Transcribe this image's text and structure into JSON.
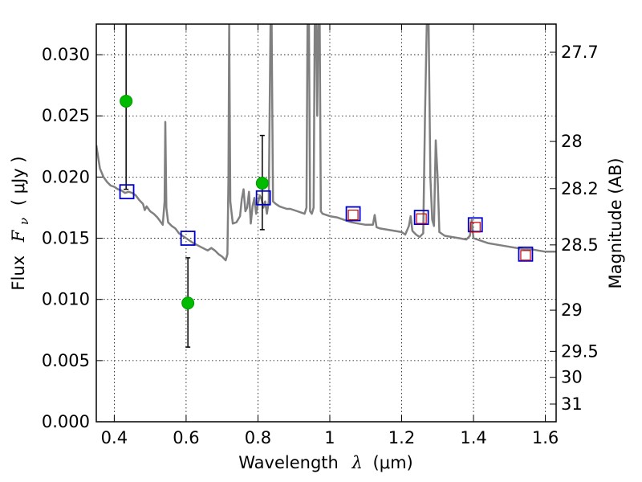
{
  "chart_data": {
    "type": "scatter",
    "xlabel": {
      "text": "Wavelength",
      "symbol": "λ",
      "unit": "(μm)"
    },
    "ylabel": {
      "text": "Flux",
      "symbol": "F",
      "subscript": "ν",
      "unit": "( μJy )"
    },
    "y2label": "Magnitude (AB)",
    "xlim": [
      0.35,
      1.63
    ],
    "ylim": [
      0.0,
      0.0325
    ],
    "grid": true,
    "x_ticks": [
      0.4,
      0.6,
      0.8,
      1.0,
      1.2,
      1.4,
      1.6
    ],
    "x_tick_labels": [
      "0.4",
      "0.6",
      "0.8",
      "1",
      "1.2",
      "1.4",
      "1.6"
    ],
    "y_ticks": [
      0.0,
      0.005,
      0.01,
      0.015,
      0.02,
      0.025,
      0.03
    ],
    "y_tick_labels": [
      "0.000",
      "0.005",
      "0.010",
      "0.015",
      "0.020",
      "0.025",
      "0.030"
    ],
    "y2_ticks": [
      {
        "label": "27.7",
        "mag": 27.7
      },
      {
        "label": "28",
        "mag": 28.0
      },
      {
        "label": "28.2",
        "mag": 28.2
      },
      {
        "label": "28.5",
        "mag": 28.5
      },
      {
        "label": "29",
        "mag": 29.0
      },
      {
        "label": "29.5",
        "mag": 29.5
      },
      {
        "label": "30",
        "mag": 30.0
      },
      {
        "label": "31",
        "mag": 31.0
      }
    ],
    "series": [
      {
        "style": "line",
        "color": "#808080",
        "points": [
          [
            0.35,
            0.0226
          ],
          [
            0.36,
            0.0207
          ],
          [
            0.37,
            0.02
          ],
          [
            0.38,
            0.0196
          ],
          [
            0.39,
            0.0193
          ],
          [
            0.4,
            0.0192
          ],
          [
            0.41,
            0.019
          ],
          [
            0.42,
            0.0189
          ],
          [
            0.43,
            0.0187
          ],
          [
            0.44,
            0.0188
          ],
          [
            0.45,
            0.0187
          ],
          [
            0.46,
            0.0185
          ],
          [
            0.47,
            0.0181
          ],
          [
            0.48,
            0.0178
          ],
          [
            0.485,
            0.0173
          ],
          [
            0.49,
            0.0176
          ],
          [
            0.5,
            0.0172
          ],
          [
            0.51,
            0.017
          ],
          [
            0.52,
            0.0167
          ],
          [
            0.53,
            0.0163
          ],
          [
            0.535,
            0.0161
          ],
          [
            0.54,
            0.018
          ],
          [
            0.542,
            0.0245
          ],
          [
            0.545,
            0.0175
          ],
          [
            0.55,
            0.0163
          ],
          [
            0.56,
            0.016
          ],
          [
            0.57,
            0.0158
          ],
          [
            0.58,
            0.0154
          ],
          [
            0.59,
            0.0152
          ],
          [
            0.6,
            0.015
          ],
          [
            0.62,
            0.0146
          ],
          [
            0.64,
            0.0143
          ],
          [
            0.66,
            0.014
          ],
          [
            0.67,
            0.0142
          ],
          [
            0.68,
            0.014
          ],
          [
            0.69,
            0.0137
          ],
          [
            0.7,
            0.0135
          ],
          [
            0.71,
            0.0132
          ],
          [
            0.715,
            0.0137
          ],
          [
            0.718,
            0.02
          ],
          [
            0.72,
            0.0325
          ],
          [
            0.723,
            0.018
          ],
          [
            0.73,
            0.0162
          ],
          [
            0.74,
            0.0163
          ],
          [
            0.75,
            0.0168
          ],
          [
            0.755,
            0.0182
          ],
          [
            0.76,
            0.019
          ],
          [
            0.765,
            0.0172
          ],
          [
            0.77,
            0.0175
          ],
          [
            0.775,
            0.0188
          ],
          [
            0.78,
            0.0162
          ],
          [
            0.785,
            0.0176
          ],
          [
            0.79,
            0.0183
          ],
          [
            0.795,
            0.017
          ],
          [
            0.8,
            0.0178
          ],
          [
            0.805,
            0.0185
          ],
          [
            0.81,
            0.0182
          ],
          [
            0.815,
            0.0175
          ],
          [
            0.82,
            0.018
          ],
          [
            0.825,
            0.017
          ],
          [
            0.83,
            0.018
          ],
          [
            0.835,
            0.0325
          ],
          [
            0.838,
            0.0325
          ],
          [
            0.842,
            0.018
          ],
          [
            0.85,
            0.0178
          ],
          [
            0.86,
            0.0176
          ],
          [
            0.87,
            0.0175
          ],
          [
            0.88,
            0.0174
          ],
          [
            0.89,
            0.0174
          ],
          [
            0.9,
            0.0173
          ],
          [
            0.91,
            0.0172
          ],
          [
            0.92,
            0.0171
          ],
          [
            0.93,
            0.017
          ],
          [
            0.935,
            0.0175
          ],
          [
            0.938,
            0.0325
          ],
          [
            0.942,
            0.0325
          ],
          [
            0.945,
            0.0172
          ],
          [
            0.95,
            0.017
          ],
          [
            0.955,
            0.0175
          ],
          [
            0.958,
            0.0325
          ],
          [
            0.962,
            0.0325
          ],
          [
            0.965,
            0.025
          ],
          [
            0.968,
            0.0325
          ],
          [
            0.972,
            0.0325
          ],
          [
            0.975,
            0.0172
          ],
          [
            0.98,
            0.017
          ],
          [
            1.0,
            0.0168
          ],
          [
            1.02,
            0.0167
          ],
          [
            1.04,
            0.0165
          ],
          [
            1.06,
            0.0163
          ],
          [
            1.08,
            0.0162
          ],
          [
            1.1,
            0.0161
          ],
          [
            1.12,
            0.0161
          ],
          [
            1.125,
            0.0169
          ],
          [
            1.13,
            0.0159
          ],
          [
            1.14,
            0.0158
          ],
          [
            1.16,
            0.0157
          ],
          [
            1.18,
            0.0156
          ],
          [
            1.2,
            0.0155
          ],
          [
            1.21,
            0.0153
          ],
          [
            1.22,
            0.016
          ],
          [
            1.225,
            0.0168
          ],
          [
            1.23,
            0.0156
          ],
          [
            1.24,
            0.0153
          ],
          [
            1.25,
            0.0151
          ],
          [
            1.26,
            0.0154
          ],
          [
            1.265,
            0.025
          ],
          [
            1.27,
            0.0325
          ],
          [
            1.275,
            0.0325
          ],
          [
            1.28,
            0.02
          ],
          [
            1.285,
            0.0165
          ],
          [
            1.29,
            0.016
          ],
          [
            1.295,
            0.023
          ],
          [
            1.3,
            0.02
          ],
          [
            1.305,
            0.0155
          ],
          [
            1.32,
            0.0152
          ],
          [
            1.34,
            0.0151
          ],
          [
            1.36,
            0.015
          ],
          [
            1.38,
            0.0149
          ],
          [
            1.39,
            0.0152
          ],
          [
            1.395,
            0.0165
          ],
          [
            1.4,
            0.015
          ],
          [
            1.42,
            0.0148
          ],
          [
            1.44,
            0.0146
          ],
          [
            1.46,
            0.0145
          ],
          [
            1.48,
            0.0144
          ],
          [
            1.5,
            0.0143
          ],
          [
            1.52,
            0.0142
          ],
          [
            1.54,
            0.0141
          ],
          [
            1.56,
            0.0141
          ],
          [
            1.58,
            0.014
          ],
          [
            1.6,
            0.0139
          ],
          [
            1.63,
            0.0139
          ]
        ]
      },
      {
        "style": "blue-square-markers",
        "color": "#0000cc",
        "points": [
          [
            0.435,
            0.0188
          ],
          [
            0.605,
            0.015
          ],
          [
            0.815,
            0.0183
          ],
          [
            1.065,
            0.017
          ],
          [
            1.255,
            0.0167
          ],
          [
            1.405,
            0.0161
          ],
          [
            1.545,
            0.0137
          ]
        ]
      },
      {
        "style": "red-square-markers",
        "color": "#cc0000",
        "points": [
          [
            1.065,
            0.0169
          ],
          [
            1.255,
            0.0166
          ],
          [
            1.405,
            0.0159
          ],
          [
            1.545,
            0.0136
          ]
        ]
      },
      {
        "style": "green-circle-markers-with-errorbars",
        "color": "#00bb00",
        "points": [
          {
            "x": 0.433,
            "y": 0.0262,
            "ylow": 0.019,
            "yhigh": 0.0325
          },
          {
            "x": 0.605,
            "y": 0.0097,
            "ylow": 0.0061,
            "yhigh": 0.0134
          },
          {
            "x": 0.812,
            "y": 0.0195,
            "ylow": 0.0157,
            "yhigh": 0.0234
          }
        ]
      }
    ]
  }
}
